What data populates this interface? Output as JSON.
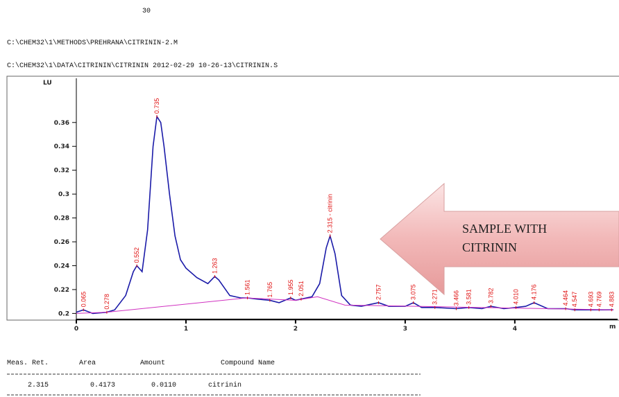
{
  "page_number": "30",
  "method_path": "C:\\CHEM32\\1\\METHODS\\PREHRANA\\CITRININ-2.M",
  "data_path": "C:\\CHEM32\\1\\DATA\\CITRININ\\CITRININ 2012-02-29 10-26-13\\CITRININ.S",
  "chart_data": {
    "type": "line",
    "y_label": "LU",
    "x_label": "m",
    "xlim": [
      0,
      4.9
    ],
    "ylim": [
      0.195,
      0.368
    ],
    "xticks": [
      0,
      1,
      2,
      3,
      4
    ],
    "yticks": [
      0.2,
      0.22,
      0.24,
      0.26,
      0.28,
      0.3,
      0.32,
      0.34,
      0.36
    ],
    "series": [
      {
        "name": "signal",
        "color": "#1a1aa8",
        "x": [
          0,
          0.065,
          0.15,
          0.278,
          0.35,
          0.45,
          0.52,
          0.552,
          0.6,
          0.65,
          0.7,
          0.735,
          0.77,
          0.8,
          0.85,
          0.9,
          0.95,
          1.0,
          1.1,
          1.2,
          1.263,
          1.3,
          1.4,
          1.5,
          1.561,
          1.65,
          1.765,
          1.85,
          1.955,
          2.0,
          2.051,
          2.15,
          2.22,
          2.28,
          2.315,
          2.36,
          2.42,
          2.5,
          2.6,
          2.757,
          2.85,
          3.0,
          3.075,
          3.15,
          3.271,
          3.466,
          3.581,
          3.7,
          3.782,
          3.9,
          4.01,
          4.1,
          4.176,
          4.3,
          4.464,
          4.547,
          4.693,
          4.769,
          4.883,
          4.9
        ],
        "values": [
          0.201,
          0.203,
          0.2,
          0.201,
          0.203,
          0.215,
          0.235,
          0.24,
          0.235,
          0.27,
          0.34,
          0.365,
          0.36,
          0.34,
          0.3,
          0.265,
          0.245,
          0.238,
          0.23,
          0.225,
          0.231,
          0.228,
          0.215,
          0.213,
          0.213,
          0.212,
          0.211,
          0.209,
          0.213,
          0.211,
          0.212,
          0.214,
          0.225,
          0.255,
          0.265,
          0.25,
          0.215,
          0.207,
          0.206,
          0.209,
          0.206,
          0.206,
          0.209,
          0.205,
          0.205,
          0.204,
          0.205,
          0.204,
          0.206,
          0.204,
          0.205,
          0.206,
          0.209,
          0.204,
          0.204,
          0.203,
          0.203,
          0.203,
          0.203,
          0.203
        ]
      },
      {
        "name": "baseline",
        "color": "#d030c0",
        "x": [
          0,
          0.278,
          1.55,
          2.0,
          2.2,
          2.45,
          4.9
        ],
        "values": [
          0.2,
          0.201,
          0.213,
          0.211,
          0.214,
          0.207,
          0.203
        ]
      }
    ],
    "peaks": [
      {
        "x": 0.065,
        "label": "0.065"
      },
      {
        "x": 0.278,
        "label": "0.278"
      },
      {
        "x": 0.552,
        "label": "0.552"
      },
      {
        "x": 0.735,
        "label": "0.735"
      },
      {
        "x": 1.263,
        "label": "1.263"
      },
      {
        "x": 1.561,
        "label": "1.561"
      },
      {
        "x": 1.765,
        "label": "1.765"
      },
      {
        "x": 1.955,
        "label": "1.955"
      },
      {
        "x": 2.051,
        "label": "2.051"
      },
      {
        "x": 2.315,
        "label": "2.315 - citrinin"
      },
      {
        "x": 2.757,
        "label": "2.757"
      },
      {
        "x": 3.075,
        "label": "3.075"
      },
      {
        "x": 3.271,
        "label": "3.271"
      },
      {
        "x": 3.466,
        "label": "3.466"
      },
      {
        "x": 3.581,
        "label": "3.581"
      },
      {
        "x": 3.782,
        "label": "3.782"
      },
      {
        "x": 4.01,
        "label": "4.010"
      },
      {
        "x": 4.176,
        "label": "4.176"
      },
      {
        "x": 4.464,
        "label": "4.464"
      },
      {
        "x": 4.547,
        "label": "4.547"
      },
      {
        "x": 4.693,
        "label": "4.693"
      },
      {
        "x": 4.769,
        "label": "4.769"
      },
      {
        "x": 4.883,
        "label": "4.883"
      }
    ],
    "callout": [
      "SAMPLE WITH",
      "CITRININ"
    ]
  },
  "table": {
    "headers": [
      "Meas. Ret.",
      "Area",
      "Amount",
      "Compound Name"
    ],
    "rows": [
      [
        "2.315",
        "0.4173",
        "0.0110",
        "citrinin"
      ]
    ]
  }
}
